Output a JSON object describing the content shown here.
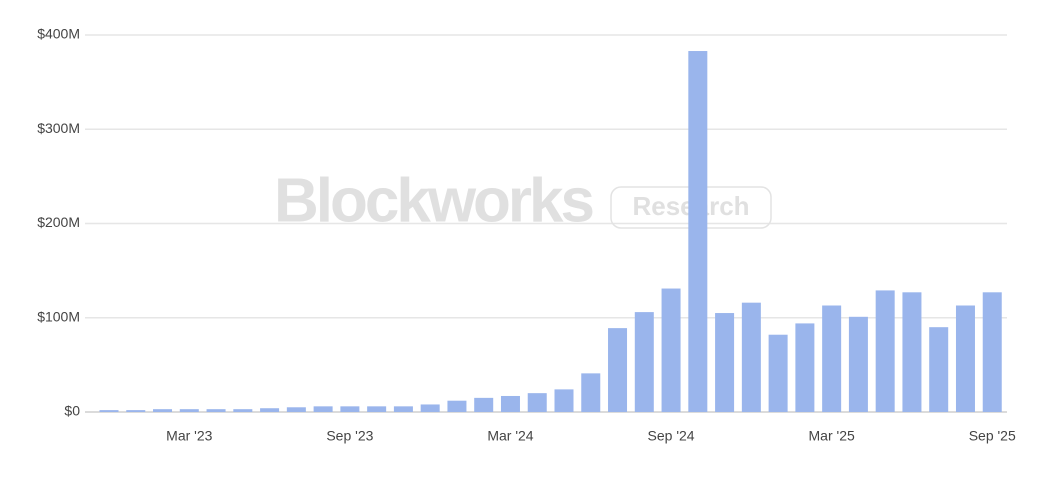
{
  "chart_data": {
    "type": "bar",
    "watermark": {
      "brand": "Blockworks",
      "tag": "Research"
    },
    "categories": [
      null,
      null,
      null,
      "Mar '23",
      null,
      null,
      null,
      null,
      null,
      "Sep '23",
      null,
      null,
      null,
      null,
      null,
      "Mar '24",
      null,
      null,
      null,
      null,
      null,
      "Sep '24",
      null,
      null,
      null,
      null,
      null,
      "Mar '25",
      null,
      null,
      null,
      null,
      null,
      "Sep '25"
    ],
    "values": [
      2,
      2,
      3,
      3,
      3,
      3,
      4,
      5,
      6,
      6,
      6,
      6,
      8,
      12,
      15,
      17,
      20,
      24,
      41,
      89,
      106,
      131,
      383,
      105,
      116,
      82,
      94,
      113,
      101,
      129,
      127,
      90,
      113,
      127
    ],
    "color": "#9ab5ec",
    "ylim": [
      0,
      400
    ],
    "yticks": [
      {
        "value": 0,
        "label": "$0"
      },
      {
        "value": 100,
        "label": "$100M"
      },
      {
        "value": 200,
        "label": "$200M"
      },
      {
        "value": 300,
        "label": "$300M"
      },
      {
        "value": 400,
        "label": "$400M"
      }
    ],
    "grid": true
  }
}
